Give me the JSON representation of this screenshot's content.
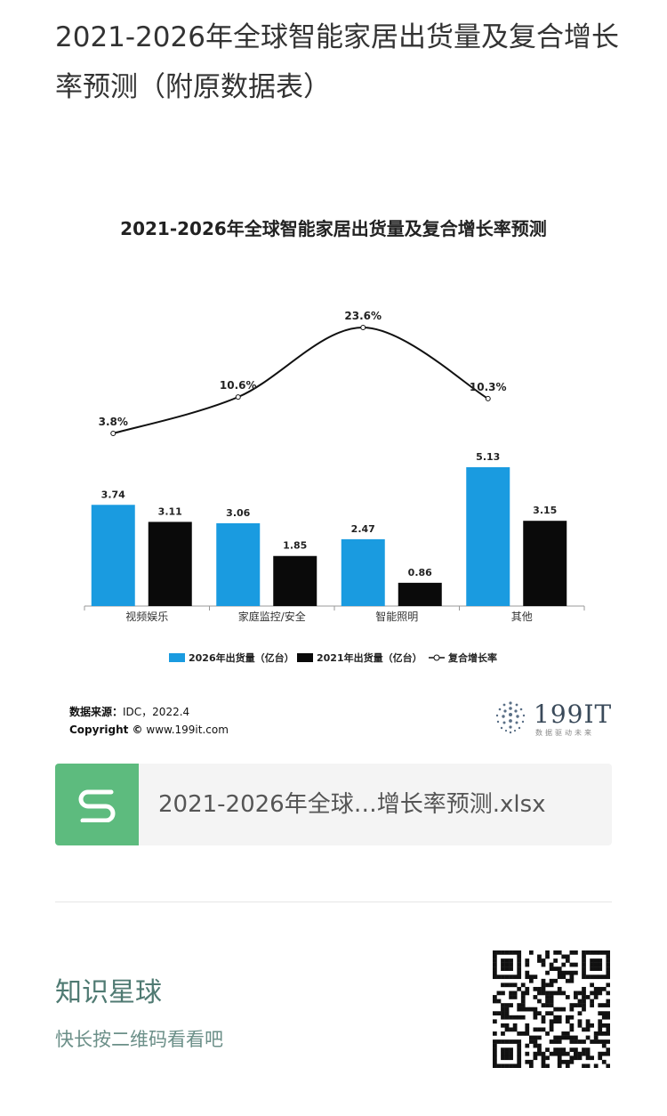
{
  "post": {
    "title": "2021-2026年全球智能家居出货量及复合增长率预测（附原数据表）"
  },
  "chart_data": {
    "type": "bar",
    "title": "2021-2026年全球智能家居出货量及复合增长率预测",
    "categories": [
      "视频娱乐",
      "家庭监控/安全",
      "智能照明",
      "其他"
    ],
    "series": [
      {
        "name": "2026年出货量（亿台）",
        "values": [
          3.74,
          3.06,
          2.47,
          5.13
        ],
        "color": "#1a9be0"
      },
      {
        "name": "2021年出货量（亿台）",
        "values": [
          3.11,
          1.85,
          0.86,
          3.15
        ],
        "color": "#0a0a0a"
      }
    ],
    "line_series": {
      "name": "复合增长率",
      "values": [
        3.8,
        10.6,
        23.6,
        10.3
      ],
      "labels": [
        "3.8%",
        "10.6%",
        "23.6%",
        "10.3%"
      ]
    },
    "bar_labels": [
      [
        "3.74",
        "3.11"
      ],
      [
        "3.06",
        "1.85"
      ],
      [
        "2.47",
        "0.86"
      ],
      [
        "5.13",
        "3.15"
      ]
    ],
    "legend_position": "bottom",
    "grid": false
  },
  "source": {
    "label": "数据来源：",
    "value": "IDC，2022.4",
    "copyright_label": "Copyright ©",
    "site": "www.199it.com"
  },
  "brand": {
    "name": "199IT",
    "tagline": "数据驱动未来"
  },
  "file": {
    "name": "2021-2026年全球…增长率预测.xlsx",
    "icon": "spreadsheet-s-icon"
  },
  "footer": {
    "title": "知识星球",
    "subtitle": "快长按二维码看看吧"
  }
}
